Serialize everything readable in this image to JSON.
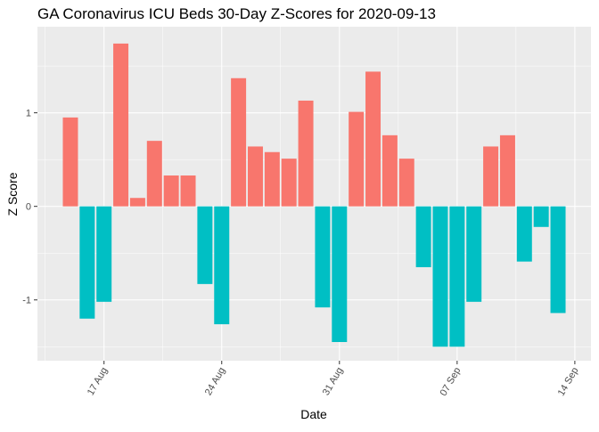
{
  "chart_data": {
    "type": "bar",
    "title": "GA Coronavirus ICU Beds 30-Day Z-Scores for 2020-09-13",
    "xlabel": "Date",
    "ylabel": "Z Score",
    "x": [
      "2020-08-15",
      "2020-08-16",
      "2020-08-17",
      "2020-08-18",
      "2020-08-19",
      "2020-08-20",
      "2020-08-21",
      "2020-08-22",
      "2020-08-23",
      "2020-08-24",
      "2020-08-25",
      "2020-08-26",
      "2020-08-27",
      "2020-08-28",
      "2020-08-29",
      "2020-08-30",
      "2020-08-31",
      "2020-09-01",
      "2020-09-02",
      "2020-09-03",
      "2020-09-04",
      "2020-09-05",
      "2020-09-06",
      "2020-09-07",
      "2020-09-08",
      "2020-09-09",
      "2020-09-10",
      "2020-09-11",
      "2020-09-12",
      "2020-09-13"
    ],
    "values": [
      0.95,
      -1.2,
      -1.02,
      1.74,
      0.09,
      0.7,
      0.33,
      0.33,
      -0.83,
      -1.26,
      1.37,
      0.64,
      0.58,
      0.51,
      1.13,
      -1.08,
      -1.45,
      1.01,
      1.44,
      0.76,
      0.51,
      -0.65,
      -1.5,
      -1.5,
      -1.02,
      0.64,
      0.76,
      -0.59,
      -0.22,
      -1.14
    ],
    "ylim": [
      -1.65,
      1.92
    ],
    "y_ticks": [
      -1,
      0,
      1
    ],
    "x_ticks": [
      {
        "date": "2020-08-17",
        "label": "17 Aug"
      },
      {
        "date": "2020-08-24",
        "label": "24 Aug"
      },
      {
        "date": "2020-08-31",
        "label": "31 Aug"
      },
      {
        "date": "2020-09-07",
        "label": "07 Sep"
      },
      {
        "date": "2020-09-14",
        "label": "14 Sep"
      }
    ],
    "grid": true,
    "legend": "none",
    "colors": {
      "positive": "#F8766D",
      "negative": "#00BFC4",
      "panel": "#EBEBEB",
      "grid": "#FFFFFF"
    }
  }
}
